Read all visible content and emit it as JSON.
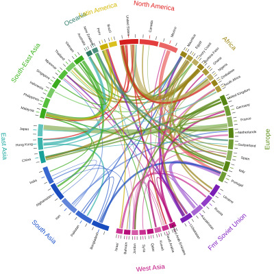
{
  "regions": [
    {
      "name": "North America",
      "color": "#e02020",
      "countries": [
        "United States",
        "Canada",
        "Mexico"
      ]
    },
    {
      "name": "Africa",
      "color": "#a08a1a",
      "countries": [
        "Mauritius",
        "Egypt",
        "Ivory Coast",
        "Burkina Faso",
        "Ghana",
        "Nigeria",
        "Zimbabwe",
        "South Africa"
      ]
    },
    {
      "name": "Europe",
      "color": "#5a8c14",
      "countries": [
        "United Kingdom",
        "Germany",
        "France",
        "Netherlands",
        "Switzerland",
        "Spain",
        "Italy",
        "Portugal"
      ]
    },
    {
      "name": "Fmr Soviet Union",
      "color": "#8020c0",
      "countries": [
        "Ukraine",
        "Russia",
        "Kazakhstan",
        "Uzbekistan"
      ]
    },
    {
      "name": "West Asia",
      "color": "#c01080",
      "countries": [
        "United Arab Emirates",
        "Saudi Arabia",
        "Kuwait",
        "Qatar",
        "Syria",
        "Jordan",
        "Bahrain",
        "Israel"
      ]
    },
    {
      "name": "South Asia",
      "color": "#1a50c8",
      "countries": [
        "Bangladesh",
        "Pakistan",
        "Iran",
        "Afghanistan",
        "India"
      ]
    },
    {
      "name": "East Asia",
      "color": "#1aa8a0",
      "countries": [
        "China",
        "Hong Kong",
        "Japan"
      ]
    },
    {
      "name": "South-East Asia",
      "color": "#3cb41e",
      "countries": [
        "Malaysia",
        "Philippines",
        "Indonesia",
        "Singapore",
        "Myanmar",
        "Thailand",
        "Vietnam"
      ]
    },
    {
      "name": "Oceania",
      "color": "#2f7d6a",
      "countries": [
        "Australia",
        "New Zealand"
      ]
    },
    {
      "name": "Latin America",
      "color": "#d4b800",
      "countries": [
        "Peru",
        "Brazil"
      ]
    }
  ]
}
